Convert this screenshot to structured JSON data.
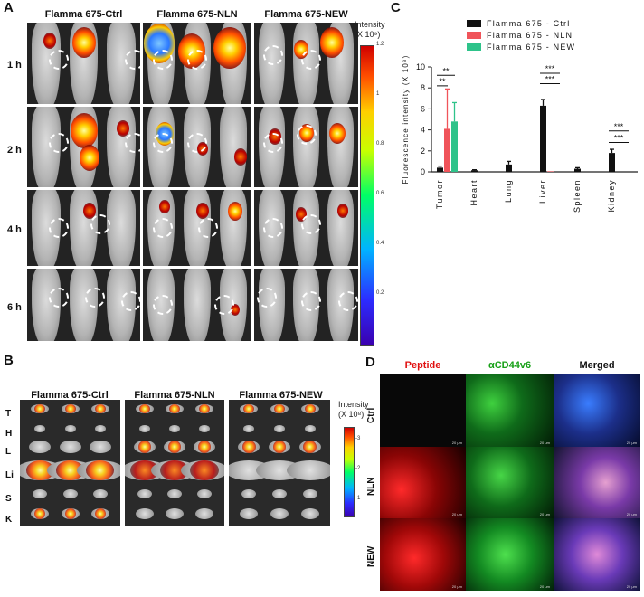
{
  "panels": {
    "a": {
      "letter": "A",
      "columns": [
        "Flamma 675-Ctrl",
        "Flamma 675-NLN",
        "Flamma 675-NEW"
      ],
      "rows": [
        "1 h",
        "2 h",
        "4 h",
        "6 h"
      ],
      "colorbar": {
        "title_line1": "Intensity",
        "title_line2": "(X 10⁹)",
        "ticks": [
          "1.2",
          "1",
          "0.8",
          "0.6",
          "0.4",
          "0.2"
        ]
      }
    },
    "b": {
      "letter": "B",
      "columns": [
        "Flamma 675-Ctrl",
        "Flamma 675-NLN",
        "Flamma 675-NEW"
      ],
      "organ_labels": [
        "T",
        "H",
        "L",
        "Li",
        "S",
        "K"
      ],
      "colorbar": {
        "title_line1": "Intensity",
        "title_line2": "(X 10⁸)",
        "ticks": [
          "-3",
          "-2",
          "-1"
        ]
      }
    },
    "c": {
      "letter": "C"
    },
    "d": {
      "letter": "D",
      "columns": [
        "Peptide",
        "αCD44v6",
        "Merged"
      ],
      "rows": [
        "Ctrl",
        "NLN",
        "NEW"
      ],
      "scale_label": "20 μm"
    }
  },
  "chart_data": {
    "type": "bar",
    "categories": [
      "Tumor",
      "Heart",
      "Lung",
      "Liver",
      "Spleen",
      "Kidney"
    ],
    "series": [
      {
        "name": "Flamma 675 - Ctrl",
        "color": "#111111",
        "values": [
          0.4,
          0.15,
          0.7,
          6.3,
          0.3,
          1.8
        ],
        "errors": [
          0.15,
          0.05,
          0.3,
          0.6,
          0.1,
          0.35
        ]
      },
      {
        "name": "Flamma 675 - NLN",
        "color": "#f0545a",
        "values": [
          4.1,
          0,
          0,
          0.05,
          0,
          0
        ],
        "errors": [
          3.8,
          0,
          0,
          0,
          0,
          0
        ]
      },
      {
        "name": "Flamma 675 - NEW",
        "color": "#2ec38a",
        "values": [
          4.8,
          0,
          0,
          0,
          0,
          0
        ],
        "errors": [
          1.8,
          0,
          0,
          0,
          0,
          0
        ]
      }
    ],
    "ylabel": "Fluorescence intensity (X 10⁸)",
    "ylim": [
      0,
      10
    ],
    "yticks": [
      "0",
      "2",
      "4",
      "6",
      "8",
      "10"
    ],
    "legend_position": "top-left",
    "significance": [
      {
        "group": "Tumor",
        "pair": "Ctrl-NLN",
        "label": "**"
      },
      {
        "group": "Tumor",
        "pair": "Ctrl-NEW",
        "label": "**"
      },
      {
        "group": "Liver",
        "pair": "Ctrl-NLN",
        "label": "***"
      },
      {
        "group": "Liver",
        "pair": "Ctrl-NEW",
        "label": "***"
      },
      {
        "group": "Kidney",
        "pair": "Ctrl-NLN",
        "label": "***"
      },
      {
        "group": "Kidney",
        "pair": "Ctrl-NEW",
        "label": "***"
      }
    ]
  }
}
